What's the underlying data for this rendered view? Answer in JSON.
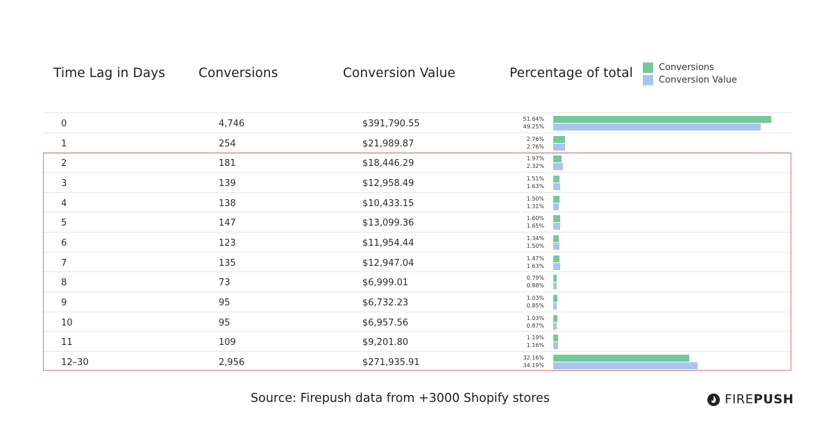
{
  "headers": {
    "time_lag": "Time Lag in Days",
    "conversions": "Conversions",
    "conversion_value": "Conversion Value",
    "percentage": "Percentage of total"
  },
  "legend": {
    "conversions": "Conversions",
    "conversion_value": "Conversion Value"
  },
  "colors": {
    "conversions": "#74c99a",
    "conversion_value": "#a8c4f0",
    "highlight_border": "#e0726f"
  },
  "rows": [
    {
      "lag": "0",
      "conversions": "4,746",
      "value": "$391,790.55",
      "pct_conv_label": "51.64%",
      "pct_val_label": "49.25%"
    },
    {
      "lag": "1",
      "conversions": "254",
      "value": "$21,989.87",
      "pct_conv_label": "2.76%",
      "pct_val_label": "2.76%"
    },
    {
      "lag": "2",
      "conversions": "181",
      "value": "$18,446.29",
      "pct_conv_label": "1.97%",
      "pct_val_label": "2.32%"
    },
    {
      "lag": "3",
      "conversions": "139",
      "value": "$12,958.49",
      "pct_conv_label": "1.51%",
      "pct_val_label": "1.63%"
    },
    {
      "lag": "4",
      "conversions": "138",
      "value": "$10,433.15",
      "pct_conv_label": "1.50%",
      "pct_val_label": "1.31%"
    },
    {
      "lag": "5",
      "conversions": "147",
      "value": "$13,099.36",
      "pct_conv_label": "1.60%",
      "pct_val_label": "1.65%"
    },
    {
      "lag": "6",
      "conversions": "123",
      "value": "$11,954.44",
      "pct_conv_label": "1.34%",
      "pct_val_label": "1.50%"
    },
    {
      "lag": "7",
      "conversions": "135",
      "value": "$12,947.04",
      "pct_conv_label": "1.47%",
      "pct_val_label": "1.63%"
    },
    {
      "lag": "8",
      "conversions": "73",
      "value": "$6,999.01",
      "pct_conv_label": "0.79%",
      "pct_val_label": "0.88%"
    },
    {
      "lag": "9",
      "conversions": "95",
      "value": "$6,732.23",
      "pct_conv_label": "1.03%",
      "pct_val_label": "0.85%"
    },
    {
      "lag": "10",
      "conversions": "95",
      "value": "$6,957.56",
      "pct_conv_label": "1.03%",
      "pct_val_label": "0.87%"
    },
    {
      "lag": "11",
      "conversions": "109",
      "value": "$9,201.80",
      "pct_conv_label": "1.19%",
      "pct_val_label": "1.16%"
    },
    {
      "lag": "12–30",
      "conversions": "2,956",
      "value": "$271,935.91",
      "pct_conv_label": "32.16%",
      "pct_val_label": "34.19%"
    }
  ],
  "chart_data": {
    "type": "bar",
    "orientation": "horizontal",
    "categories": [
      "0",
      "1",
      "2",
      "3",
      "4",
      "5",
      "6",
      "7",
      "8",
      "9",
      "10",
      "11",
      "12–30"
    ],
    "series": [
      {
        "name": "Conversions",
        "values": [
          51.64,
          2.76,
          1.97,
          1.51,
          1.5,
          1.6,
          1.34,
          1.47,
          0.79,
          1.03,
          1.03,
          1.19,
          32.16
        ]
      },
      {
        "name": "Conversion Value",
        "values": [
          49.25,
          2.76,
          2.32,
          1.63,
          1.31,
          1.65,
          1.5,
          1.63,
          0.88,
          0.85,
          0.87,
          1.16,
          34.19
        ]
      }
    ],
    "xlim": [
      0,
      51.64
    ],
    "legend_position": "top-right",
    "grid": false
  },
  "source": "Source: Firepush data from +3000 Shopify stores",
  "brand": {
    "part1": "FIRE",
    "part2": "PUSH",
    "icon": "firepush-logo-icon"
  }
}
